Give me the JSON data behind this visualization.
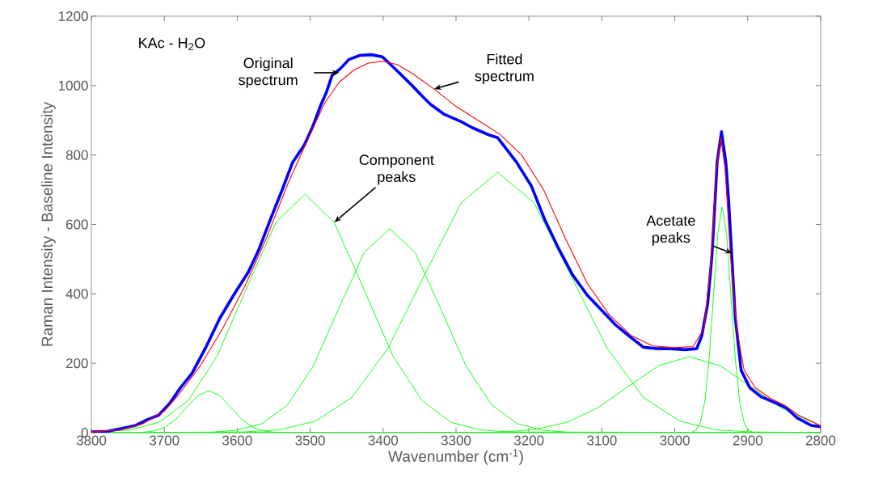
{
  "chart_data": {
    "type": "line",
    "xlabel": "Wavenumber (cm$^{-1}$)",
    "ylabel": "Raman Intensity - Baseline Intensity",
    "xlim": [
      3800,
      2800
    ],
    "ylim": [
      0,
      1200
    ],
    "xticks": [
      3800,
      3700,
      3600,
      3500,
      3400,
      3300,
      3200,
      3100,
      3000,
      2900,
      2800
    ],
    "yticks": [
      0,
      200,
      400,
      600,
      800,
      1000,
      1200
    ],
    "annotations": [
      "KAc - H$_{2}$O",
      {
        "text": "Original spectrum",
        "x": 3460,
        "y": 1037
      },
      {
        "text": "Fitted spectrum",
        "x": 3330,
        "y": 990
      },
      {
        "text": "Component peaks",
        "x": 3467,
        "y": 606
      },
      {
        "text": "Acetate peaks",
        "x": 2921,
        "y": 517
      }
    ],
    "series": [
      {
        "color": "#00ff00",
        "x": [
          3800,
          3744,
          3729,
          3714,
          3699,
          3684,
          3669,
          3654,
          3639,
          3624,
          3609,
          3594,
          3579,
          3564,
          3549,
          3534,
          2800
        ],
        "values": [
          0,
          0,
          1,
          5,
          16,
          39,
          73,
          107,
          121,
          107,
          73,
          39,
          16,
          5,
          1,
          0,
          0
        ]
      },
      {
        "color": "#00ff00",
        "x": [
          3800,
          3747,
          3707,
          3667,
          3627,
          3587,
          3547,
          3507,
          3467,
          3427,
          3387,
          3347,
          3307,
          3267,
          3227,
          2800
        ],
        "values": [
          1,
          8,
          30,
          93,
          223,
          417,
          606,
          687,
          606,
          417,
          223,
          93,
          30,
          8,
          2,
          0
        ]
      },
      {
        "color": "#00ff00",
        "x": [
          3800,
          3636,
          3601,
          3566,
          3531,
          3496,
          3461,
          3426,
          3391,
          3356,
          3321,
          3286,
          3251,
          3216,
          3181,
          3146,
          2800
        ],
        "values": [
          0,
          1,
          7,
          26,
          80,
          191,
          357,
          519,
          588,
          519,
          357,
          191,
          80,
          26,
          7,
          1,
          0
        ]
      },
      {
        "color": "#00ff00",
        "x": [
          3800,
          3593,
          3543,
          3493,
          3443,
          3393,
          3343,
          3293,
          3243,
          3193,
          3143,
          3093,
          3043,
          2993,
          2943,
          2893,
          2800
        ],
        "values": [
          0,
          2,
          8,
          33,
          101,
          244,
          455,
          662,
          750,
          662,
          455,
          244,
          101,
          33,
          8,
          2,
          0
        ]
      },
      {
        "color": "#00ff00",
        "x": [
          3800,
          3274,
          3232,
          3190,
          3148,
          3106,
          3064,
          3022,
          2980,
          2938,
          2896,
          2854,
          2812
        ],
        "values": [
          0,
          0,
          2,
          10,
          30,
          71,
          133,
          193,
          219,
          193,
          133,
          71,
          30
        ]
      },
      {
        "color": "#00ff00",
        "x": [
          3800,
          2977,
          2971,
          2965,
          2959,
          2953,
          2947,
          2941,
          2935,
          2929,
          2923,
          2917,
          2911,
          2905,
          2899,
          2893,
          2800
        ],
        "values": [
          0,
          1,
          7,
          29,
          88,
          211,
          394,
          574,
          650,
          574,
          394,
          211,
          88,
          29,
          7,
          1,
          0
        ]
      },
      {
        "color": "#0000ff",
        "x": [
          3800,
          3778,
          3758,
          3739,
          3724,
          3708,
          3693,
          3678,
          3662,
          3643,
          3624,
          3605,
          3585,
          3570,
          3555,
          3539,
          3524,
          3508,
          3497,
          3485,
          3478,
          3470,
          3458,
          3447,
          3432,
          3416,
          3401,
          3393,
          3378,
          3362,
          3347,
          3335,
          3316,
          3293,
          3278,
          3255,
          3243,
          3217,
          3197,
          3178,
          3159,
          3140,
          3120,
          3101,
          3082,
          3063,
          3043,
          3024,
          3005,
          2986,
          2970,
          2963,
          2955,
          2949,
          2945,
          2942,
          2936,
          2930,
          2926,
          2922,
          2917,
          2909,
          2897,
          2882,
          2859,
          2847,
          2832,
          2813,
          2800
        ],
        "values": [
          2,
          4,
          12,
          21,
          37,
          50,
          83,
          129,
          171,
          246,
          329,
          396,
          462,
          529,
          612,
          696,
          779,
          829,
          879,
          946,
          979,
          1029,
          1050,
          1075,
          1087,
          1089,
          1083,
          1067,
          1037,
          1004,
          971,
          946,
          917,
          896,
          879,
          858,
          850,
          779,
          712,
          612,
          529,
          454,
          396,
          354,
          312,
          279,
          246,
          242,
          242,
          239,
          242,
          279,
          371,
          512,
          662,
          779,
          867,
          779,
          662,
          512,
          329,
          179,
          129,
          104,
          83,
          71,
          42,
          21,
          17
        ]
      },
      {
        "color": "#ff0000",
        "x": [
          3800,
          3760,
          3730,
          3700,
          3680,
          3650,
          3620,
          3590,
          3560,
          3530,
          3500,
          3480,
          3460,
          3440,
          3420,
          3400,
          3380,
          3360,
          3330,
          3300,
          3270,
          3240,
          3210,
          3180,
          3150,
          3120,
          3090,
          3060,
          3030,
          3000,
          2975,
          2960,
          2950,
          2943,
          2937,
          2931,
          2924,
          2915,
          2905,
          2890,
          2870,
          2850,
          2830,
          2800
        ],
        "values": [
          2,
          8,
          25,
          62,
          110,
          195,
          300,
          420,
          560,
          720,
          860,
          950,
          1010,
          1045,
          1065,
          1070,
          1060,
          1035,
          990,
          940,
          900,
          860,
          800,
          700,
          560,
          430,
          340,
          280,
          250,
          245,
          248,
          300,
          500,
          760,
          850,
          760,
          520,
          300,
          180,
          130,
          100,
          80,
          50,
          20
        ]
      }
    ]
  }
}
